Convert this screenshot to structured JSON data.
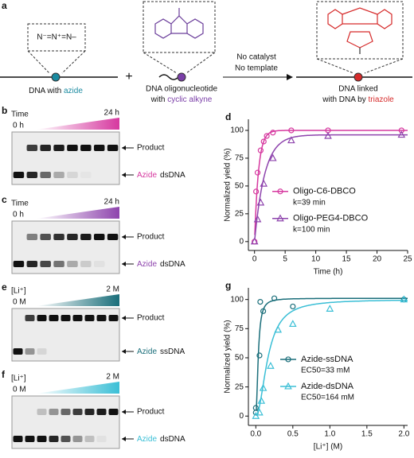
{
  "panel_a": {
    "label": "a",
    "azide_formula": "N⁻=N⁺=N–",
    "plus": "+",
    "caption1": "DNA with ",
    "caption1_colored": "azide",
    "caption2_line1": "DNA oligonucleotide",
    "caption2": "with ",
    "caption2_colored": "cyclic alkyne",
    "arrow_top": "No catalyst",
    "arrow_bottom": "No template",
    "caption3_line1": "DNA linked",
    "caption3": "with DNA by ",
    "caption3_colored": "triazole"
  },
  "gels": [
    {
      "label": "b",
      "scale_label": "Time",
      "start": "0 h",
      "end": "24 h",
      "color": "#d6389f",
      "upper_label": "Product",
      "lower_label_colored": "Azide",
      "lower_label": "dsDNA",
      "product_intensity": [
        0,
        0.8,
        0.9,
        0.95,
        1,
        1,
        1,
        1
      ],
      "substrate_intensity": [
        1,
        0.9,
        0.6,
        0.3,
        0.1,
        0.03,
        0,
        0
      ]
    },
    {
      "label": "c",
      "scale_label": "Time",
      "start": "0 h",
      "end": "24 h",
      "color": "#8e44ad",
      "upper_label": "Product",
      "lower_label_colored": "Azide",
      "lower_label": "dsDNA",
      "product_intensity": [
        0,
        0.5,
        0.7,
        0.85,
        0.9,
        0.95,
        1,
        1
      ],
      "substrate_intensity": [
        1,
        0.9,
        0.75,
        0.55,
        0.3,
        0.15,
        0.05,
        0
      ]
    },
    {
      "label": "e",
      "scale_label": "[Li⁺]",
      "start": "0 M",
      "end": "2 M",
      "color": "#1a6e7a",
      "upper_label": "Product",
      "lower_label_colored": "Azide",
      "lower_label": "ssDNA",
      "product_intensity": [
        0,
        0.8,
        1,
        1,
        1,
        1,
        1,
        1,
        1
      ],
      "substrate_intensity": [
        1,
        0.4,
        0.1,
        0,
        0,
        0,
        0,
        0,
        0
      ]
    },
    {
      "label": "f",
      "scale_label": "[Li⁺]",
      "start": "0 M",
      "end": "2 M",
      "color": "#3bbfd6",
      "upper_label": "Product",
      "lower_label_colored": "Azide",
      "lower_label": "dsDNA",
      "product_intensity": [
        0,
        0,
        0.2,
        0.4,
        0.6,
        0.8,
        0.9,
        0.95,
        1
      ],
      "substrate_intensity": [
        1,
        1,
        1,
        0.9,
        0.7,
        0.4,
        0.2,
        0.05,
        0
      ]
    }
  ],
  "chart_data": [
    {
      "type": "scatter",
      "label": "d",
      "x_label": "Time (h)",
      "y_label": "Normalized yield (%)",
      "fit_model": "first-order",
      "xlim": [
        -1,
        25
      ],
      "ylim": [
        -8,
        110
      ],
      "xticks": [
        0,
        5,
        10,
        15,
        20,
        25
      ],
      "yticks": [
        0,
        25,
        50,
        75,
        100
      ],
      "legend": "right",
      "series": [
        {
          "name": "Oligo-C6-DBCO",
          "color": "#d6389f",
          "marker": "circle",
          "fit": {
            "value": 39,
            "label": "k=39 min"
          },
          "x": [
            0,
            0.25,
            0.5,
            1,
            1.5,
            2,
            3,
            6,
            12,
            24
          ],
          "values": [
            0,
            45,
            62,
            82,
            90,
            95,
            98,
            100,
            100,
            100
          ]
        },
        {
          "name": "Oligo-PEG4-DBCO",
          "color": "#8e44ad",
          "marker": "triangle",
          "fit": {
            "value": 100,
            "label": "k=100 min"
          },
          "x": [
            0,
            0.5,
            1,
            1.5,
            3,
            6,
            12,
            24
          ],
          "values": [
            0,
            20,
            35,
            52,
            75,
            91,
            95,
            96
          ]
        }
      ]
    },
    {
      "type": "scatter",
      "label": "g",
      "x_label": "[Li⁺] (M)",
      "y_label": "Normalized yield (%)",
      "fit_model": "binding",
      "xlim": [
        -0.1,
        2.05
      ],
      "ylim": [
        -8,
        110
      ],
      "xticks": [
        {
          "value": 0,
          "label": "0.0"
        },
        {
          "value": 0.5,
          "label": "0.5"
        },
        {
          "value": 1,
          "label": "1.0"
        },
        {
          "value": 1.5,
          "label": "1.5"
        },
        {
          "value": 2,
          "label": "2.0"
        }
      ],
      "yticks": [
        0,
        25,
        50,
        75,
        100
      ],
      "legend": "right",
      "series": [
        {
          "name": "Azide-ssDNA",
          "color": "#1a6e7a",
          "marker": "circle",
          "fit": {
            "value": 33,
            "label": "EC50=33 mM"
          },
          "x": [
            0,
            0,
            0.05,
            0.06,
            0.1,
            0.25,
            0.5,
            2
          ],
          "values": [
            7,
            3,
            52,
            98,
            90,
            101,
            94,
            100
          ]
        },
        {
          "name": "Azide-dsDNA",
          "color": "#3bbfd6",
          "marker": "triangle",
          "fit": {
            "value": 164,
            "label": "EC50=164 mM"
          },
          "x": [
            0,
            0.05,
            0.075,
            0.1,
            0.2,
            0.3,
            0.5,
            1,
            2
          ],
          "values": [
            0,
            3,
            13,
            24,
            43,
            74,
            79,
            92,
            100
          ]
        }
      ]
    }
  ]
}
